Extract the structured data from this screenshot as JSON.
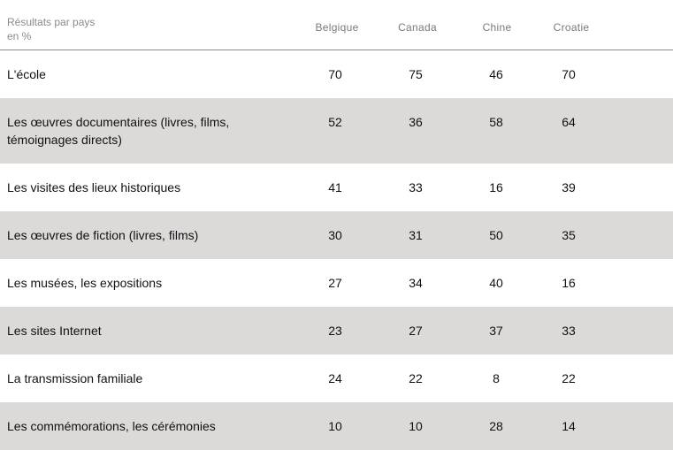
{
  "header": {
    "title_line1": "Résultats par pays",
    "title_line2": "en %",
    "columns": [
      "Belgique",
      "Canada",
      "Chine",
      "Croatie"
    ]
  },
  "rows": [
    {
      "label": "L'école",
      "values": [
        "70",
        "75",
        "46",
        "70"
      ],
      "shaded": false
    },
    {
      "label": "Les œuvres documentaires (livres, films, témoignages directs)",
      "values": [
        "52",
        "36",
        "58",
        "64"
      ],
      "shaded": true
    },
    {
      "label": "Les visites des lieux historiques",
      "values": [
        "41",
        "33",
        "16",
        "39"
      ],
      "shaded": false
    },
    {
      "label": "Les œuvres de fiction (livres, films)",
      "values": [
        "30",
        "31",
        "50",
        "35"
      ],
      "shaded": true
    },
    {
      "label": "Les musées, les expositions",
      "values": [
        "27",
        "34",
        "40",
        "16"
      ],
      "shaded": false
    },
    {
      "label": "Les sites Internet",
      "values": [
        "23",
        "27",
        "37",
        "33"
      ],
      "shaded": true
    },
    {
      "label": "La transmission familiale",
      "values": [
        "24",
        "22",
        "8",
        "22"
      ],
      "shaded": false
    },
    {
      "label": "Les commémorations, les cérémonies",
      "values": [
        "10",
        "10",
        "28",
        "14"
      ],
      "shaded": true
    }
  ]
}
